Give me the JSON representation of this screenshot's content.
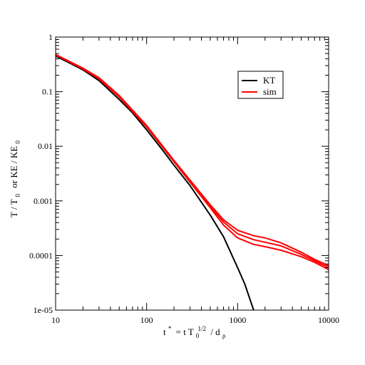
{
  "chart_data": {
    "type": "line",
    "xscale": "log",
    "yscale": "log",
    "xlim": [
      10,
      10000
    ],
    "ylim": [
      1e-05,
      1
    ],
    "grid": false,
    "legend_position": "top-right",
    "xlabel": {
      "t_star": "t",
      "star": "*",
      "eq": "= t T",
      "sub0": "0",
      "half": "1/2",
      "div": "/ d",
      "rho": "ρ"
    },
    "ylabel": {
      "T": "T / T",
      "sub0a": "0",
      "or": "or KE / KE",
      "sub0b": "0"
    },
    "xticks": [
      {
        "value": 10,
        "label": "10"
      },
      {
        "value": 100,
        "label": "100"
      },
      {
        "value": 1000,
        "label": "1000"
      },
      {
        "value": 10000,
        "label": "10000"
      }
    ],
    "yticks": [
      {
        "value": 1,
        "label": "1"
      },
      {
        "value": 0.1,
        "label": "0.1"
      },
      {
        "value": 0.01,
        "label": "0.01"
      },
      {
        "value": 0.001,
        "label": "0.001"
      },
      {
        "value": 0.0001,
        "label": "0.0001"
      },
      {
        "value": 1e-05,
        "label": "1e-05"
      }
    ],
    "legend": [
      {
        "name": "KT",
        "color": "#000000"
      },
      {
        "name": "sim",
        "color": "#ff0000"
      }
    ],
    "series": [
      {
        "name": "KT",
        "color": "#000000",
        "x": [
          10,
          15,
          20,
          30,
          50,
          70,
          100,
          150,
          200,
          300,
          500,
          700,
          1000,
          1200,
          1400,
          1500
        ],
        "y": [
          0.45,
          0.32,
          0.25,
          0.16,
          0.072,
          0.041,
          0.02,
          0.0085,
          0.0045,
          0.0019,
          0.00055,
          0.00022,
          6e-05,
          3e-05,
          1.4e-05,
          1e-05
        ]
      },
      {
        "name": "sim",
        "color": "#ff0000",
        "x": [
          10,
          20,
          30,
          50,
          100,
          200,
          300,
          500,
          700,
          1000,
          1500,
          2000,
          3000,
          5000,
          7000,
          10000
        ],
        "y": [
          0.48,
          0.27,
          0.18,
          0.085,
          0.024,
          0.0055,
          0.0024,
          0.00085,
          0.00045,
          0.00029,
          0.00023,
          0.00021,
          0.00017,
          0.000115,
          8.5e-05,
          6.5e-05
        ]
      },
      {
        "name": "sim",
        "color": "#ff0000",
        "x": [
          10,
          20,
          30,
          50,
          100,
          200,
          300,
          500,
          700,
          1000,
          1500,
          2000,
          3000,
          5000,
          7000,
          10000
        ],
        "y": [
          0.47,
          0.265,
          0.175,
          0.082,
          0.023,
          0.0053,
          0.0023,
          0.0008,
          0.00041,
          0.00025,
          0.000195,
          0.000175,
          0.00015,
          0.000105,
          8e-05,
          6e-05
        ]
      },
      {
        "name": "sim",
        "color": "#ff0000",
        "x": [
          10,
          20,
          30,
          50,
          100,
          200,
          300,
          500,
          700,
          1000,
          1500,
          2000,
          3000,
          5000,
          7000,
          10000
        ],
        "y": [
          0.47,
          0.26,
          0.172,
          0.08,
          0.0225,
          0.0052,
          0.0022,
          0.00075,
          0.00036,
          0.00021,
          0.00016,
          0.000145,
          0.000125,
          9.5e-05,
          7.5e-05,
          5.5e-05
        ]
      }
    ]
  }
}
